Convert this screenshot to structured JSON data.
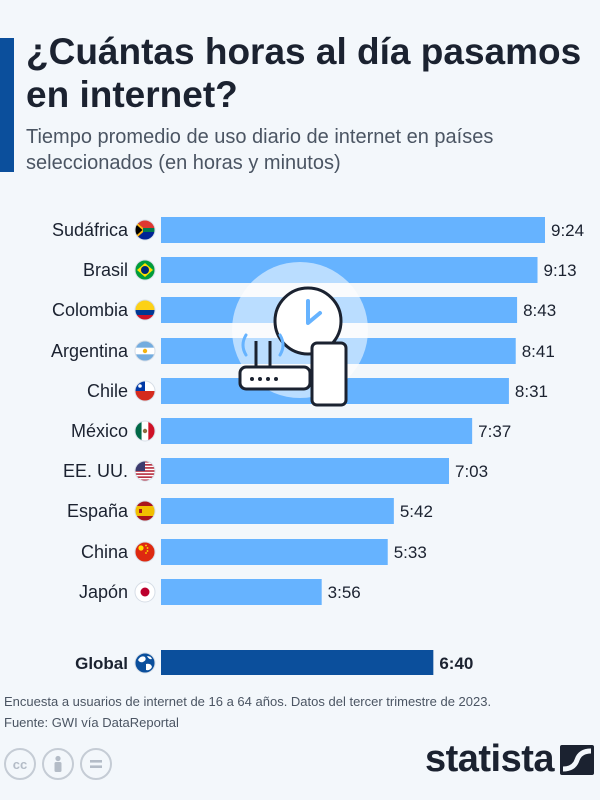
{
  "header": {
    "title": "¿Cuántas horas al día pasamos en internet?",
    "subtitle": "Tiempo promedio de uso diario de internet en países seleccionados (en horas y minutos)"
  },
  "footer": {
    "note": "Encuesta a usuarios de internet de 16 a 64 años. Datos del tercer trimestre de 2023.",
    "source": "Fuente: GWI vía DataReportal",
    "brand": "statista"
  },
  "colors": {
    "bar": "#66b3ff",
    "highlight_bar": "#0b4f9c",
    "text": "#1b2230",
    "accent": "#0b4f9c"
  },
  "chart_data": {
    "type": "bar",
    "orientation": "horizontal",
    "title": "¿Cuántas horas al día pasamos en internet?",
    "subtitle": "Tiempo promedio de uso diario de internet en países seleccionados (en horas y minutos)",
    "categories": [
      "Sudáfrica",
      "Brasil",
      "Colombia",
      "Argentina",
      "Chile",
      "México",
      "EE. UU.",
      "España",
      "China",
      "Japón",
      "Global"
    ],
    "values_minutes": [
      564,
      553,
      523,
      521,
      511,
      457,
      423,
      342,
      333,
      236,
      400
    ],
    "labels": [
      "9:24",
      "9:13",
      "8:43",
      "8:41",
      "8:31",
      "7:37",
      "7:03",
      "5:42",
      "5:33",
      "3:56",
      "6:40"
    ],
    "flag_icons": [
      "south-africa-flag-icon",
      "brazil-flag-icon",
      "colombia-flag-icon",
      "argentina-flag-icon",
      "chile-flag-icon",
      "mexico-flag-icon",
      "usa-flag-icon",
      "spain-flag-icon",
      "china-flag-icon",
      "japan-flag-icon",
      "globe-icon"
    ],
    "highlight_category": "Global",
    "xlim": [
      0,
      564
    ],
    "grid": false,
    "legend": "none"
  }
}
